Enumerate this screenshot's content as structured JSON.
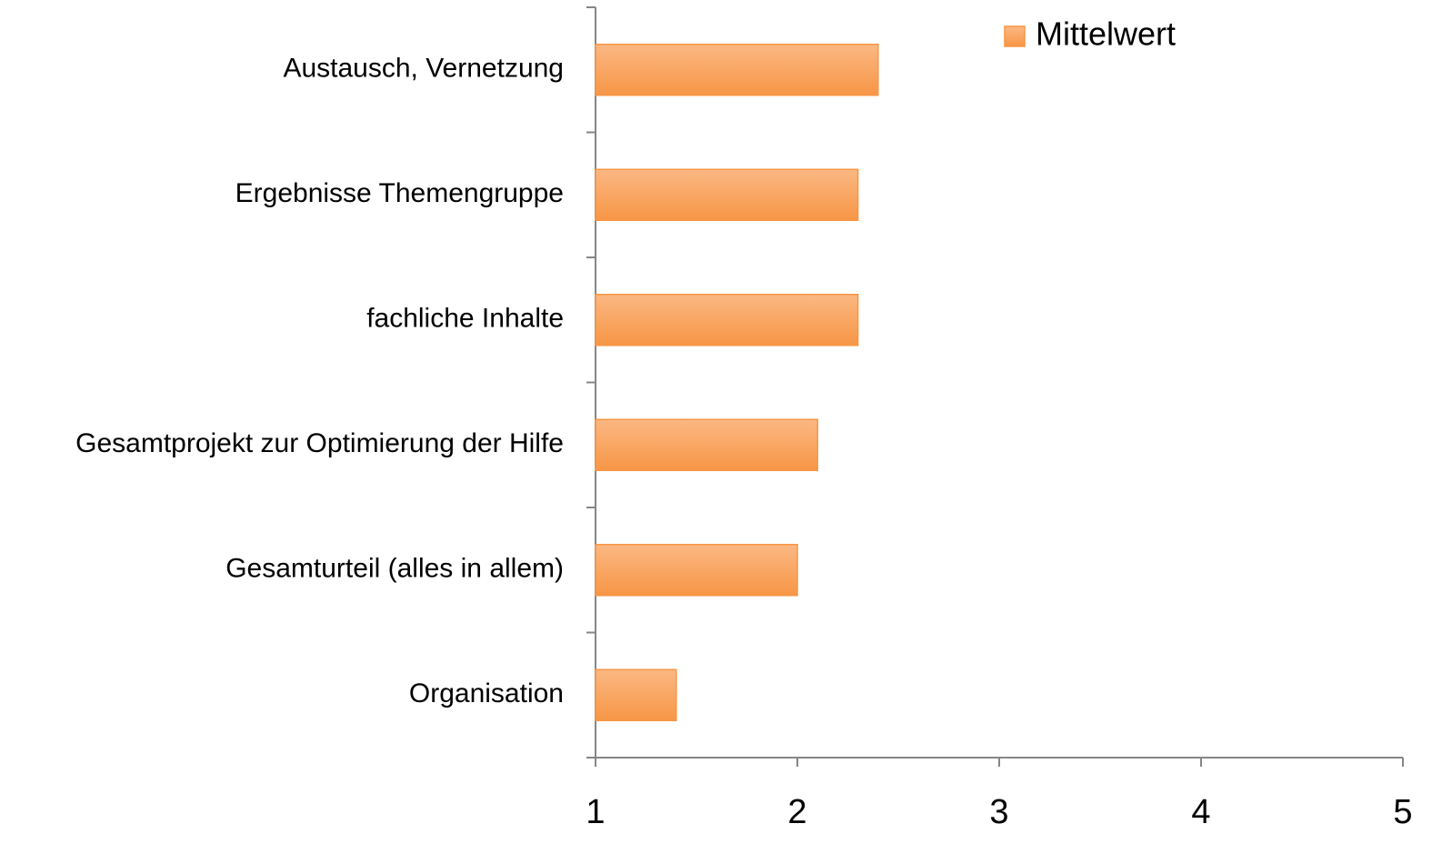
{
  "chart_data": {
    "type": "bar",
    "orientation": "horizontal",
    "categories": [
      "Austausch, Vernetzung",
      "Ergebnisse Themengruppe",
      "fachliche Inhalte",
      "Gesamtprojekt zur Optimierung der Hilfe",
      "Gesamturteil (alles in allem)",
      "Organisation"
    ],
    "series": [
      {
        "name": "Mittelwert",
        "color": "#f79646",
        "values": [
          2.4,
          2.3,
          2.3,
          2.1,
          2.0,
          1.4
        ]
      }
    ],
    "xlim": [
      1,
      5
    ],
    "xticks": [
      1,
      2,
      3,
      4,
      5
    ],
    "grid": false,
    "legend": "top-right"
  }
}
